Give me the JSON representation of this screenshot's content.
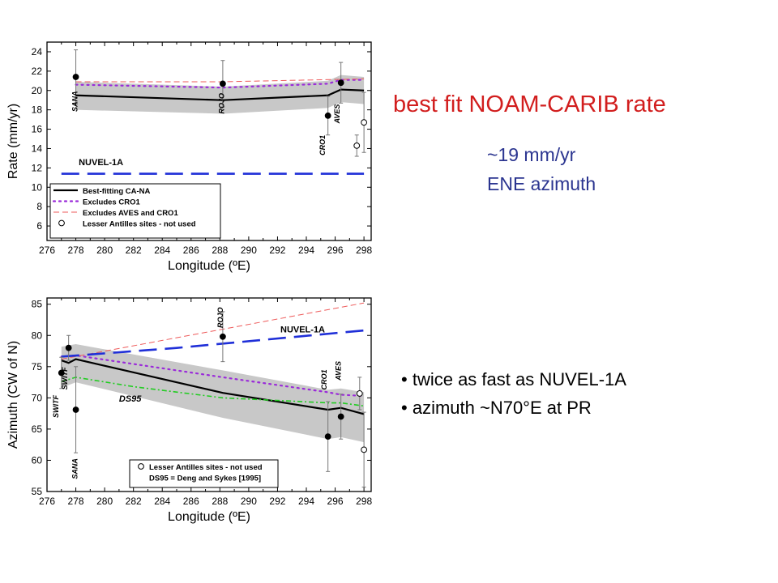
{
  "slide": {
    "title": "best fit NOAM-CARIB rate",
    "rate_text": "~19 mm/yr",
    "azimuth_text": "ENE azimuth",
    "bullets": [
      "twice as fast as NUVEL-1A",
      "azimuth ~N70°E at PR"
    ]
  },
  "colors": {
    "title": "#d21e1e",
    "subtext": "#2b3590",
    "best_fit": "#000000",
    "excludes_cro1": "#9a2bd9",
    "excludes_aves_cro1": "#ee5a5a",
    "nuvel": "#1f2fd8",
    "ds95": "#22cc22",
    "band": "#c8c8c8"
  },
  "chart_data": [
    {
      "type": "line",
      "xlabel": "Longitude (ºE)",
      "ylabel": "Rate (mm/yr)",
      "xlim": [
        276,
        298.5
      ],
      "ylim": [
        4.5,
        25
      ],
      "xticks": [
        276,
        278,
        280,
        282,
        284,
        286,
        288,
        290,
        292,
        294,
        296,
        298
      ],
      "yticks": [
        6,
        8,
        10,
        12,
        14,
        16,
        18,
        20,
        22,
        24
      ],
      "grid": false,
      "legend_position": "bottom-left",
      "legend": [
        {
          "label": "Best-fitting CA-NA",
          "style": "solid"
        },
        {
          "label": "Excludes CRO1",
          "style": "dotted"
        },
        {
          "label": "Excludes AVES and CRO1",
          "style": "dashed-thin"
        },
        {
          "label": "Lesser Antilles sites - not used",
          "style": "open-circle"
        }
      ],
      "series": [
        {
          "name": "Best-fitting CA-NA",
          "key": "best_fit",
          "style": "solid",
          "x": [
            278,
            288.2,
            295.5,
            296.4,
            298
          ],
          "y": [
            19.5,
            19.0,
            19.5,
            20.1,
            20.0
          ]
        },
        {
          "name": "Excludes CRO1",
          "key": "excludes_cro1",
          "style": "dotted",
          "x": [
            278,
            288.2,
            295.5,
            296.4,
            298
          ],
          "y": [
            20.6,
            20.3,
            20.7,
            21.1,
            21.1
          ]
        },
        {
          "name": "Excludes AVES and CRO1",
          "key": "excludes_aves_cro1",
          "style": "dashed-thin",
          "x": [
            278,
            288.2,
            298
          ],
          "y": [
            20.9,
            20.9,
            21.2
          ]
        },
        {
          "name": "NUVEL-1A",
          "key": "nuvel",
          "style": "dashed-thick",
          "x": [
            277,
            298
          ],
          "y": [
            11.4,
            11.4
          ]
        }
      ],
      "band": {
        "x": [
          278,
          288.2,
          295.5,
          296.4,
          298
        ],
        "upper": [
          20.9,
          20.4,
          21.0,
          21.6,
          21.4
        ],
        "lower": [
          18.0,
          17.6,
          18.2,
          18.8,
          18.6
        ]
      },
      "points": [
        {
          "x": 278,
          "y": 21.4,
          "err": 2.8,
          "filled": true
        },
        {
          "x": 288.2,
          "y": 20.7,
          "err": 2.4,
          "filled": true
        },
        {
          "x": 295.5,
          "y": 17.4,
          "err": 2.0,
          "filled": true
        },
        {
          "x": 296.4,
          "y": 20.8,
          "err": 2.1,
          "filled": true
        },
        {
          "x": 297.5,
          "y": 14.3,
          "err": 1.1,
          "filled": false
        },
        {
          "x": 298,
          "y": 16.7,
          "err": 3.1,
          "filled": false
        }
      ],
      "site_labels": [
        {
          "text": "SANA",
          "x": 278.1,
          "y": 17.8
        },
        {
          "text": "ROJO",
          "x": 288.3,
          "y": 17.6
        },
        {
          "text": "CRO1",
          "x": 295.3,
          "y": 13.3
        },
        {
          "text": "AVES",
          "x": 296.3,
          "y": 16.6
        }
      ],
      "annotations": [
        {
          "text": "NUVEL-1A",
          "x": 278.2,
          "y": 12.3
        }
      ]
    },
    {
      "type": "line",
      "xlabel": "Longitude (ºE)",
      "ylabel": "Azimuth (CW of N)",
      "xlim": [
        276,
        298.5
      ],
      "ylim": [
        55,
        86
      ],
      "xticks": [
        276,
        278,
        280,
        282,
        284,
        286,
        288,
        290,
        292,
        294,
        296,
        298
      ],
      "yticks": [
        55,
        60,
        65,
        70,
        75,
        80,
        85
      ],
      "grid": false,
      "legend_position": "bottom-right",
      "legend": [
        {
          "label": "Lesser Antilles sites - not used",
          "style": "open-circle"
        },
        {
          "label": "DS95 = Deng and Sykes [1995]",
          "style": "none"
        }
      ],
      "series": [
        {
          "name": "Best-fitting CA-NA",
          "key": "best_fit",
          "style": "solid",
          "x": [
            277,
            277.5,
            278,
            288.2,
            295.5,
            296.4,
            298
          ],
          "y": [
            76.0,
            75.6,
            76.2,
            70.8,
            68.1,
            68.4,
            67.4
          ]
        },
        {
          "name": "Excludes CRO1",
          "key": "excludes_cro1",
          "style": "dotted",
          "x": [
            277,
            278,
            288.2,
            295.5,
            296.4,
            298
          ],
          "y": [
            76.6,
            76.8,
            73.3,
            70.9,
            70.5,
            70.3
          ]
        },
        {
          "name": "Excludes AVES and CRO1",
          "key": "excludes_aves_cro1",
          "style": "dashed-thin",
          "x": [
            277,
            298
          ],
          "y": [
            76.2,
            85.2
          ]
        },
        {
          "name": "NUVEL-1A",
          "key": "nuvel",
          "style": "dashed-thick",
          "x": [
            277,
            285,
            298
          ],
          "y": [
            76.6,
            78.0,
            80.8
          ]
        },
        {
          "name": "DS95",
          "key": "ds95",
          "style": "dashdot",
          "x": [
            277,
            278,
            282,
            288.2,
            295.5,
            296.4,
            298
          ],
          "y": [
            72.6,
            73.3,
            71.8,
            70.0,
            69.2,
            69.2,
            68.7
          ]
        }
      ],
      "band": {
        "x": [
          277,
          278,
          288.2,
          295.5,
          296.4,
          298
        ],
        "upper": [
          78.2,
          78.6,
          74.4,
          71.3,
          71.5,
          70.9
        ],
        "lower": [
          71.6,
          72.5,
          66.8,
          63.4,
          63.7,
          62.9
        ]
      },
      "points": [
        {
          "x": 277,
          "y": 74.0,
          "err": 2.5,
          "filled": true
        },
        {
          "x": 277.5,
          "y": 78.0,
          "err": 2.0,
          "filled": true
        },
        {
          "x": 278,
          "y": 68.1,
          "err": 6.9,
          "filled": true
        },
        {
          "x": 288.2,
          "y": 79.8,
          "err": 4.0,
          "filled": true
        },
        {
          "x": 295.5,
          "y": 63.8,
          "err": 5.6,
          "filled": true
        },
        {
          "x": 296.4,
          "y": 67.0,
          "err": 3.6,
          "filled": true
        },
        {
          "x": 297.7,
          "y": 70.7,
          "err": 2.6,
          "filled": false
        },
        {
          "x": 298,
          "y": 61.7,
          "err": 6.0,
          "filled": false
        }
      ],
      "site_labels": [
        {
          "text": "SWITF",
          "x": 276.8,
          "y": 66.8
        },
        {
          "text": "SWITF",
          "x": 277.4,
          "y": 71.3
        },
        {
          "text": "SANA",
          "x": 278.1,
          "y": 57.0
        },
        {
          "text": "ROJO",
          "x": 288.2,
          "y": 81.2
        },
        {
          "text": "CRO1",
          "x": 295.4,
          "y": 71.3
        },
        {
          "text": "AVES",
          "x": 296.4,
          "y": 72.8
        }
      ],
      "annotations": [
        {
          "text": "DS95",
          "x": 281.0,
          "y": 69.4
        },
        {
          "text": "NUVEL-1A",
          "x": 292.2,
          "y": 80.5
        }
      ]
    }
  ]
}
